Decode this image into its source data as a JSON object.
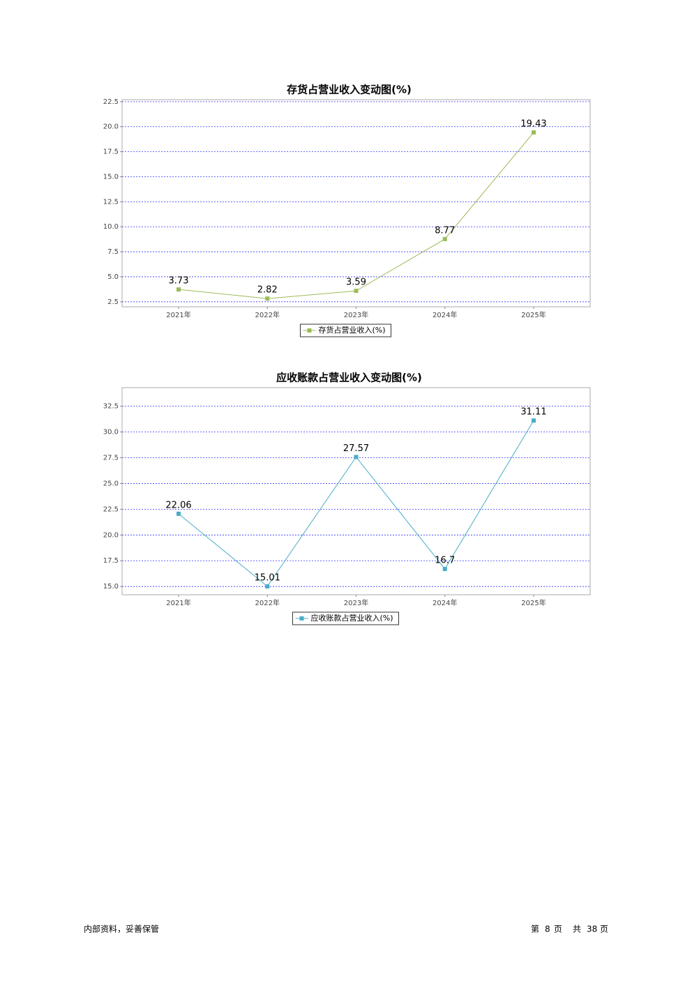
{
  "chart_data": [
    {
      "type": "line",
      "title": "存货占营业收入变动图(%)",
      "categories": [
        "2021年",
        "2022年",
        "2023年",
        "2024年",
        "2025年"
      ],
      "series": [
        {
          "name": "存货占营业收入(%)",
          "color": "#9bbb59",
          "values": [
            3.73,
            2.82,
            3.59,
            8.77,
            19.43
          ]
        }
      ],
      "ylim": [
        2.0,
        22.7
      ],
      "yticks": [
        2.5,
        {
          "value": 5,
          "label": "5.0"
        },
        7.5,
        {
          "value": 10,
          "label": "10.0"
        },
        12.5,
        {
          "value": 15,
          "label": "15.0"
        },
        17.5,
        {
          "value": 20,
          "label": "20.0"
        },
        22.5
      ],
      "grid": true
    },
    {
      "type": "line",
      "title": "应收账款占营业收入变动图(%)",
      "categories": [
        "2021年",
        "2022年",
        "2023年",
        "2024年",
        "2025年"
      ],
      "series": [
        {
          "name": "应收账款占营业收入(%)",
          "color": "#4bacc6",
          "values": [
            22.06,
            15.01,
            27.57,
            16.7,
            31.11
          ]
        }
      ],
      "ylim": [
        14.2,
        34.3
      ],
      "yticks": [
        {
          "value": 15,
          "label": "15.0"
        },
        17.5,
        {
          "value": 20,
          "label": "20.0"
        },
        22.5,
        {
          "value": 25,
          "label": "25.0"
        },
        27.5,
        {
          "value": 30,
          "label": "30.0"
        },
        32.5
      ],
      "grid": true
    }
  ],
  "footer": {
    "left": "内部资料，妥善保管",
    "right": [
      "第",
      "8",
      "页",
      "共",
      "38",
      "页"
    ]
  }
}
